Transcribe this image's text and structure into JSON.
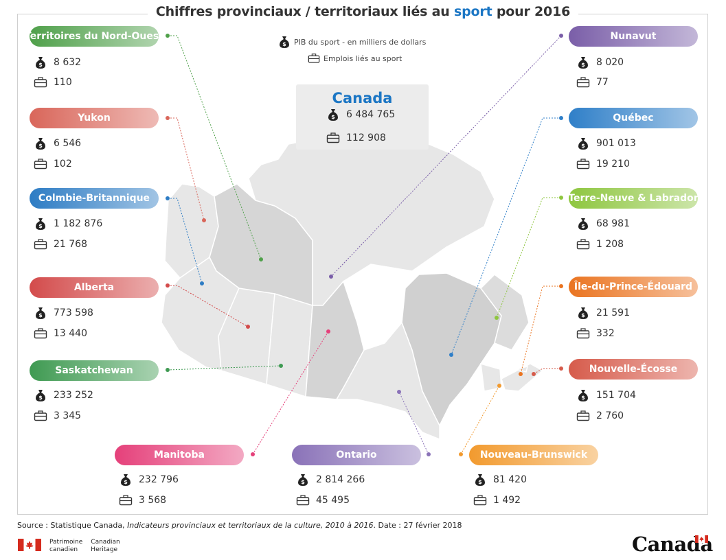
{
  "title": {
    "before": "Chiffres provinciaux / territoriaux liés au ",
    "highlight": "sport",
    "after": " pour 2016"
  },
  "legend": {
    "gdp": "PIB du sport - en milliers de dollars",
    "jobs": "Emplois liés au sport"
  },
  "icons": {
    "gdp": "money-bag-icon",
    "jobs": "briefcase-icon"
  },
  "canada": {
    "name": "Canada",
    "gdp": "6 484 765",
    "jobs": "112 908"
  },
  "regions": [
    {
      "name": "Territoires du Nord-Ouest",
      "gdp": "8 632",
      "jobs": "110",
      "color": "#4fa04a"
    },
    {
      "name": "Yukon",
      "gdp": "6 546",
      "jobs": "102",
      "color": "#d9665a"
    },
    {
      "name": "Colmbie-Britannique",
      "gdp": "1 182 876",
      "jobs": "21 768",
      "color": "#2d7cc4"
    },
    {
      "name": "Alberta",
      "gdp": "773 598",
      "jobs": "13 440",
      "color": "#d34b4b"
    },
    {
      "name": "Saskatchewan",
      "gdp": "233 252",
      "jobs": "3 345",
      "color": "#3f9a52"
    },
    {
      "name": "Manitoba",
      "gdp": "232 796",
      "jobs": "3 568",
      "color": "#e5407a"
    },
    {
      "name": "Ontario",
      "gdp": "2 814 266",
      "jobs": "45 495",
      "color": "#8a72b8"
    },
    {
      "name": "Nouveau-Brunswick",
      "gdp": "81 420",
      "jobs": "1 492",
      "color": "#f29a2e"
    },
    {
      "name": "Nouvelle-Écosse",
      "gdp": "151 704",
      "jobs": "2 760",
      "color": "#d65b4b"
    },
    {
      "name": "Île-du-Prince-Édouard",
      "gdp": "21 591",
      "jobs": "332",
      "color": "#ea7420"
    },
    {
      "name": "Terre-Neuve & Labrador",
      "gdp": "68 981",
      "jobs": "1 208",
      "color": "#8ec63f"
    },
    {
      "name": "Québec",
      "gdp": "901 013",
      "jobs": "19 210",
      "color": "#2f7fc8"
    },
    {
      "name": "Nunavut",
      "gdp": "8 020",
      "jobs": "77",
      "color": "#7a5ea8"
    }
  ],
  "source": {
    "prefix": "Source : Statistique Canada, ",
    "italic": "Indicateurs provinciaux et territoriaux de la culture, 2010 à 2016",
    "suffix": ". Date : 27 février 2018"
  },
  "footer": {
    "fr1": "Patrimoine",
    "fr2": "canadien",
    "en1": "Canadian",
    "en2": "Heritage",
    "wordmark": "Canada"
  }
}
